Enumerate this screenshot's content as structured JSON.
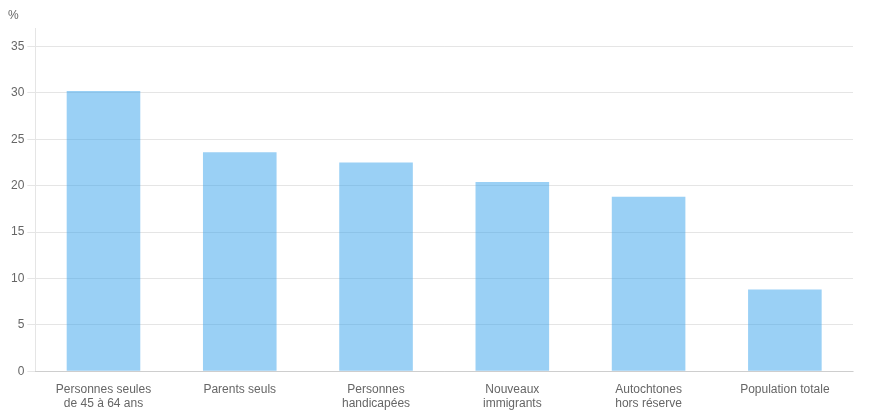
{
  "chart_data": {
    "type": "bar",
    "categories": [
      "Personnes seules\nde 45 à 64 ans",
      "Parents seuls",
      "Personnes\nhandicapées",
      "Nouveaux\nimmigrants",
      "Autochtones\nhors réserve",
      "Population totale"
    ],
    "values": [
      30.2,
      23.6,
      22.5,
      20.4,
      18.8,
      8.8
    ],
    "ylabel": "%",
    "ylim": [
      0,
      37
    ],
    "yticks": [
      0,
      5,
      10,
      15,
      20,
      25,
      30,
      35
    ],
    "grid": true
  }
}
